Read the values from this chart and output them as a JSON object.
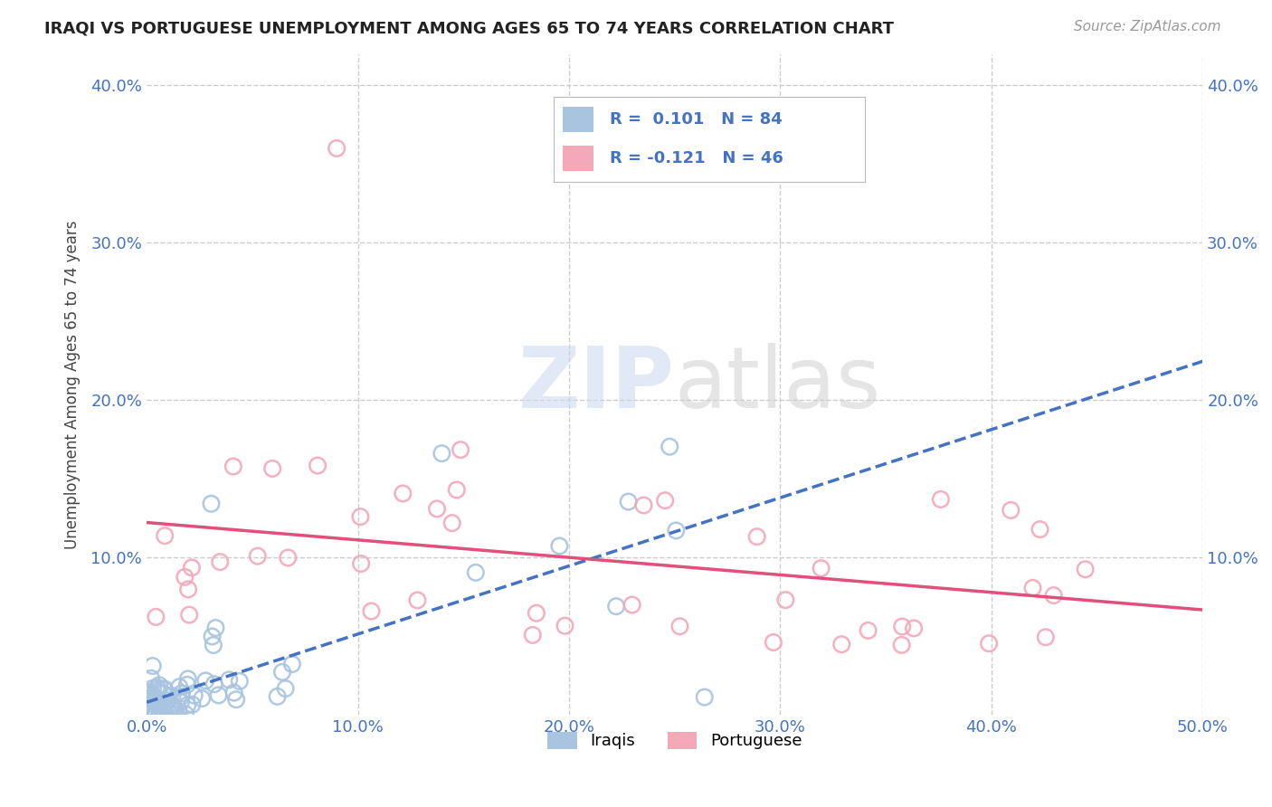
{
  "title": "IRAQI VS PORTUGUESE UNEMPLOYMENT AMONG AGES 65 TO 74 YEARS CORRELATION CHART",
  "source": "Source: ZipAtlas.com",
  "ylabel": "Unemployment Among Ages 65 to 74 years",
  "xlim": [
    0.0,
    0.5
  ],
  "ylim": [
    0.0,
    0.42
  ],
  "xticks": [
    0.0,
    0.1,
    0.2,
    0.3,
    0.4,
    0.5
  ],
  "xticklabels": [
    "0.0%",
    "10.0%",
    "20.0%",
    "30.0%",
    "40.0%",
    "50.0%"
  ],
  "yticks": [
    0.0,
    0.1,
    0.2,
    0.3,
    0.4
  ],
  "yticklabels": [
    "",
    "10.0%",
    "20.0%",
    "30.0%",
    "40.0%"
  ],
  "grid_color": "#cccccc",
  "background_color": "#ffffff",
  "watermark_zip": "ZIP",
  "watermark_atlas": "atlas",
  "iraqi_color": "#a8c4e0",
  "portuguese_color": "#f4a8b8",
  "iraqi_line_color": "#4472c4",
  "portuguese_line_color": "#e0507a",
  "R_iraqi": 0.101,
  "N_iraqi": 84,
  "R_portuguese": -0.121,
  "N_portuguese": 46,
  "tick_color": "#4472c4",
  "title_color": "#222222",
  "source_color": "#999999",
  "ylabel_color": "#444444"
}
